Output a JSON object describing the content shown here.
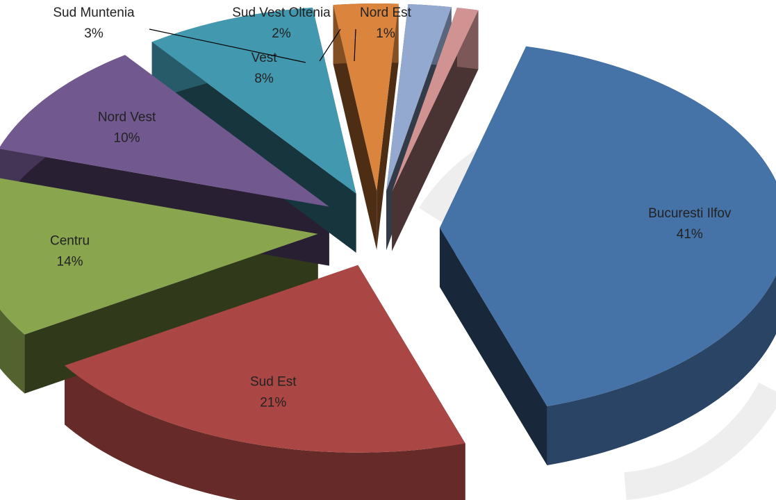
{
  "chart_data": {
    "type": "pie",
    "categories": [
      "Bucuresti Ilfov",
      "Sud Est",
      "Centru",
      "Nord Vest",
      "Vest",
      "Sud Muntenia",
      "Sud Vest Oltenia",
      "Nord Est"
    ],
    "values": [
      41,
      21,
      14,
      10,
      8,
      3,
      2,
      1
    ],
    "value_labels": [
      "41%",
      "21%",
      "14%",
      "10%",
      "8%",
      "3%",
      "2%",
      "1%"
    ],
    "colors": [
      "#4572a7",
      "#aa4643",
      "#89a54e",
      "#71588f",
      "#4198af",
      "#db843d",
      "#93a9cf",
      "#d19392"
    ]
  }
}
